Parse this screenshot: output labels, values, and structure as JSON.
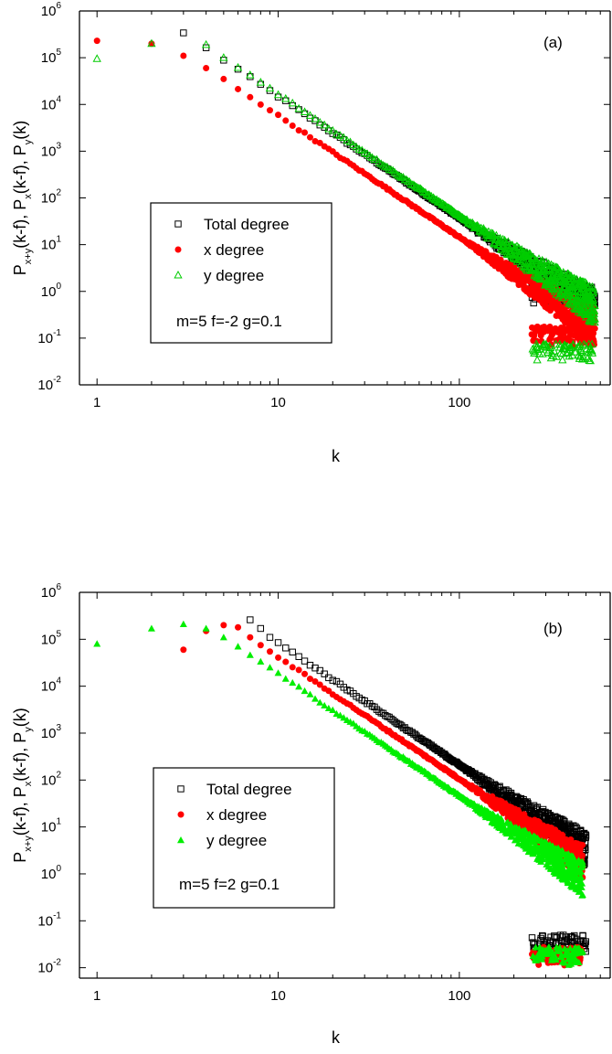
{
  "chart_data": [
    {
      "type": "scatter",
      "panel_label": "(a)",
      "xlabel": "k",
      "ylabel": {
        "base1": "P",
        "sub1": "x+y",
        "mid1": "(k-f), P",
        "sub2": "x",
        "mid2": "(k-f), P",
        "sub3": "y",
        "end": "(k)"
      },
      "x_scale": "log",
      "y_scale": "log",
      "xlim": [
        0.8,
        680
      ],
      "ylim": [
        0.01,
        1000000
      ],
      "x_ticks": [
        "1",
        "10",
        "100"
      ],
      "y_ticks": [
        {
          "base": "10",
          "exp": "-2"
        },
        {
          "base": "10",
          "exp": "-1"
        },
        {
          "base": "10",
          "exp": "0"
        },
        {
          "base": "10",
          "exp": "1"
        },
        {
          "base": "10",
          "exp": "2"
        },
        {
          "base": "10",
          "exp": "3"
        },
        {
          "base": "10",
          "exp": "4"
        },
        {
          "base": "10",
          "exp": "5"
        },
        {
          "base": "10",
          "exp": "6"
        }
      ],
      "legend": {
        "entries": [
          "Total degree",
          "x degree",
          "y degree"
        ],
        "placement": "center-left"
      },
      "annotation": "m=5  f=-2  g=0.1",
      "series": [
        {
          "name": "Total degree",
          "marker": "open-square",
          "color": "#000000",
          "start_k": 3,
          "start_value": 340000,
          "peak_k": 3,
          "peak_value": 340000,
          "slope": -2.6,
          "max_k": 560,
          "tail_value": 0.5
        },
        {
          "name": "x degree",
          "marker": "filled-circle",
          "color": "#ff0000",
          "head_points": [
            [
              1,
              230000
            ],
            [
              2,
              200000
            ],
            [
              3,
              110000
            ],
            [
              4,
              60000
            ],
            [
              5,
              35000
            ]
          ],
          "slope": -2.6,
          "max_k": 560,
          "tail_value": 0.07
        },
        {
          "name": "y degree",
          "marker": "open-triangle",
          "color": "#00cc00",
          "head_points": [
            [
              1,
              95000
            ],
            [
              2,
              200000
            ],
            [
              4,
              190000
            ],
            [
              5,
              100000
            ]
          ],
          "slope": -2.6,
          "max_k": 560,
          "tail_value": 0.03
        }
      ]
    },
    {
      "type": "scatter",
      "panel_label": "(b)",
      "xlabel": "k",
      "ylabel": {
        "base1": "P",
        "sub1": "x+y",
        "mid1": "(k-f), P",
        "sub2": "x",
        "mid2": "(k-f), P",
        "sub3": "y",
        "end": "(k)"
      },
      "x_scale": "log",
      "y_scale": "log",
      "xlim": [
        0.8,
        680
      ],
      "ylim": [
        0.006,
        1000000
      ],
      "x_ticks": [
        "1",
        "10",
        "100"
      ],
      "y_ticks": [
        {
          "base": "10",
          "exp": "-2"
        },
        {
          "base": "10",
          "exp": "-1"
        },
        {
          "base": "10",
          "exp": "0"
        },
        {
          "base": "10",
          "exp": "1"
        },
        {
          "base": "10",
          "exp": "2"
        },
        {
          "base": "10",
          "exp": "3"
        },
        {
          "base": "10",
          "exp": "4"
        },
        {
          "base": "10",
          "exp": "5"
        },
        {
          "base": "10",
          "exp": "6"
        }
      ],
      "legend": {
        "entries": [
          "Total degree",
          "x degree",
          "y degree"
        ],
        "placement": "center-left"
      },
      "annotation": "m=5  f=2  g=0.1",
      "series": [
        {
          "name": "Total degree",
          "marker": "open-square",
          "color": "#000000",
          "head_points": [
            [
              7,
              260000
            ],
            [
              8,
              170000
            ],
            [
              9,
              110000
            ]
          ],
          "slope": -2.6,
          "max_k": 500,
          "tail_value": 0.02
        },
        {
          "name": "x degree",
          "marker": "filled-circle",
          "color": "#ff0000",
          "head_points": [
            [
              3,
              60000
            ],
            [
              4,
              150000
            ],
            [
              5,
              200000
            ],
            [
              6,
              180000
            ],
            [
              7,
              110000
            ],
            [
              8,
              75000
            ]
          ],
          "slope": -2.6,
          "max_k": 480,
          "tail_value": 0.011
        },
        {
          "name": "y degree",
          "marker": "filled-triangle",
          "color": "#00ee00",
          "head_points": [
            [
              1,
              80000
            ],
            [
              2,
              170000
            ],
            [
              3,
              210000
            ],
            [
              4,
              170000
            ],
            [
              5,
              110000
            ],
            [
              6,
              70000
            ]
          ],
          "slope": -2.6,
          "max_k": 480,
          "tail_value": 0.011
        }
      ]
    }
  ]
}
